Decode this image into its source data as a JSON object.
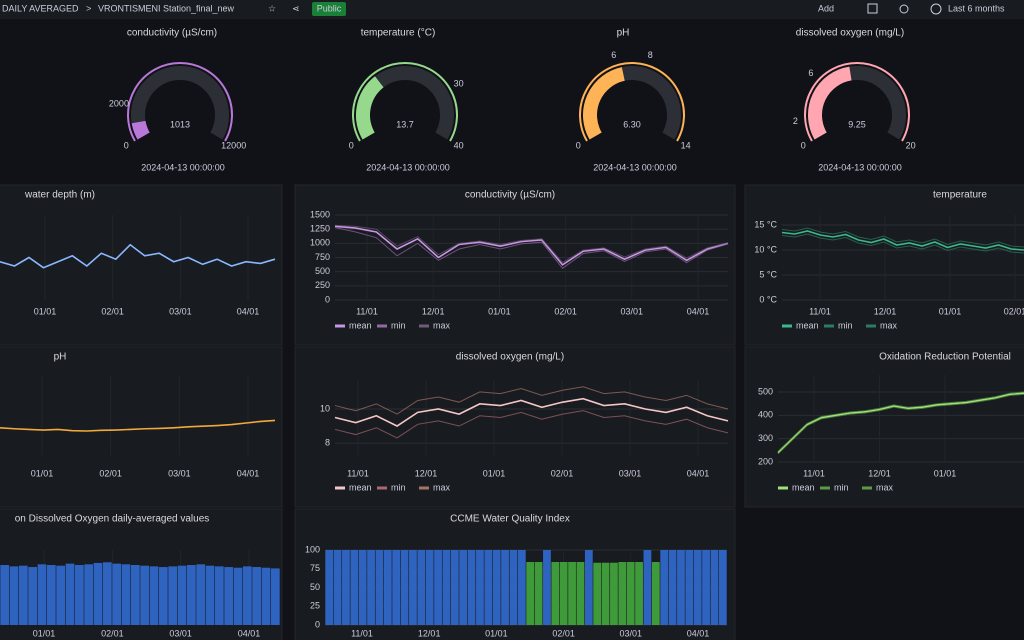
{
  "header": {
    "breadcrumb": "DAILY AVERAGED",
    "separator": ">",
    "dashboard": "VRONTISMENI Station_final_new",
    "badge": "Public",
    "add": "Add",
    "time_range": "Last 6 months"
  },
  "chart_data": [
    {
      "type": "gauge",
      "title": "conductivity (µS/cm)",
      "value": 1013,
      "ticks": [
        0,
        2000,
        12000
      ],
      "color": "#b877d9",
      "timestamp": "2024-04-13 00:00:00"
    },
    {
      "type": "gauge",
      "title": "temperature (°C)",
      "value": 13.7,
      "ticks": [
        0,
        30,
        40
      ],
      "color": "#96d98d",
      "timestamp": "2024-04-13 00:00:00"
    },
    {
      "type": "gauge",
      "title": "pH",
      "value": 6.3,
      "value_label": "6.30",
      "ticks": [
        0,
        6,
        8,
        14
      ],
      "color": "#ffb357",
      "timestamp": "2024-04-13 00:00:00"
    },
    {
      "type": "gauge",
      "title": "dissolved oxygen (mg/L)",
      "value": 9.25,
      "ticks": [
        0,
        2,
        6,
        20
      ],
      "color": "#ffa6b0",
      "timestamp": "2024-04-13 00:00:00"
    },
    {
      "type": "line",
      "title": "water depth (m)",
      "ylim": [
        0.6,
        1.6
      ],
      "xticks": [
        "01/01",
        "02/01",
        "03/01",
        "04/01"
      ],
      "series": [
        {
          "color": "#8ab8ff",
          "values": [
            1.05,
            1.0,
            1.1,
            0.98,
            1.05,
            1.12,
            1.0,
            1.15,
            1.08,
            1.25,
            1.12,
            1.15,
            1.05,
            1.1,
            1.02,
            1.08,
            1.0,
            1.05,
            1.03,
            1.08
          ]
        }
      ]
    },
    {
      "type": "line",
      "title": "conductivity (µS/cm)",
      "ylim": [
        0,
        1500
      ],
      "yticks": [
        0,
        250,
        500,
        750,
        1000,
        1250,
        1500
      ],
      "xticks": [
        "11/01",
        "12/01",
        "01/01",
        "02/01",
        "03/01",
        "04/01"
      ],
      "series": [
        {
          "name": "mean",
          "color": "#ca95e5",
          "values": [
            1300,
            1270,
            1200,
            900,
            1080,
            750,
            980,
            1020,
            950,
            1030,
            1060,
            620,
            860,
            900,
            720,
            880,
            930,
            700,
            900,
            1000
          ]
        },
        {
          "name": "min",
          "color": "#8f6aa3",
          "values": [
            1280,
            1200,
            1100,
            780,
            1000,
            700,
            900,
            980,
            900,
            990,
            1020,
            560,
            820,
            870,
            680,
            850,
            900,
            660,
            880,
            990
          ]
        },
        {
          "name": "max",
          "color": "#6e5a7a",
          "values": [
            1320,
            1300,
            1250,
            950,
            1120,
            800,
            1000,
            1040,
            980,
            1050,
            1080,
            660,
            880,
            920,
            760,
            900,
            950,
            740,
            920,
            1010
          ]
        }
      ]
    },
    {
      "type": "line",
      "title": "temperature",
      "ylim": [
        0,
        17
      ],
      "yticks": [
        {
          "value": 0,
          "label": "0 °C"
        },
        {
          "value": 5,
          "label": "5 °C"
        },
        {
          "value": 10,
          "label": "10 °C"
        },
        {
          "value": 15,
          "label": "15 °C"
        }
      ],
      "xticks": [
        "11/01",
        "12/01",
        "01/01",
        "02/01"
      ],
      "series": [
        {
          "name": "mean",
          "color": "#3cb88a",
          "values": [
            13.5,
            13.2,
            13.8,
            13.0,
            12.6,
            13.1,
            12.0,
            11.5,
            12.2,
            11.0,
            11.4,
            10.8,
            11.6,
            10.5,
            11.2,
            10.8,
            10.4,
            11.0,
            10.2,
            10.0
          ]
        },
        {
          "name": "min",
          "color": "#2b7d62",
          "values": [
            12.9,
            12.6,
            13.2,
            12.4,
            12.0,
            12.5,
            11.4,
            10.9,
            11.6,
            10.4,
            10.8,
            10.2,
            11.0,
            9.9,
            10.6,
            10.2,
            9.8,
            10.4,
            9.6,
            9.4
          ]
        },
        {
          "name": "max",
          "color": "#2b7d62",
          "values": [
            14.1,
            13.8,
            14.4,
            13.6,
            13.2,
            13.7,
            12.6,
            12.1,
            12.8,
            11.6,
            12.0,
            11.4,
            12.2,
            11.1,
            11.8,
            11.4,
            11.0,
            11.6,
            10.8,
            10.6
          ]
        }
      ]
    },
    {
      "type": "line",
      "title": "pH",
      "ylim": [
        5.5,
        8
      ],
      "xticks": [
        "01/01",
        "02/01",
        "03/01",
        "04/01"
      ],
      "series": [
        {
          "color": "#f2a93b",
          "values": [
            6.35,
            6.32,
            6.3,
            6.28,
            6.3,
            6.26,
            6.25,
            6.27,
            6.28,
            6.3,
            6.32,
            6.33,
            6.35,
            6.38,
            6.4,
            6.42,
            6.45,
            6.5,
            6.55,
            6.58
          ]
        }
      ]
    },
    {
      "type": "line",
      "title": "dissolved oxygen (mg/L)",
      "ylim": [
        7.3,
        11.7
      ],
      "yticks": [
        8,
        10
      ],
      "xticks": [
        "11/01",
        "12/01",
        "01/01",
        "02/01",
        "03/01",
        "04/01"
      ],
      "series": [
        {
          "name": "mean",
          "color": "#f5c6c6",
          "values": [
            9.5,
            9.2,
            9.6,
            9.0,
            9.8,
            10.0,
            9.7,
            10.3,
            10.2,
            10.5,
            10.1,
            10.4,
            10.6,
            10.2,
            10.3,
            10.0,
            9.8,
            10.1,
            9.6,
            9.3
          ]
        },
        {
          "name": "min",
          "color": "#a86a72",
          "values": [
            8.8,
            8.5,
            8.9,
            8.3,
            9.1,
            9.3,
            9.0,
            9.6,
            9.5,
            9.8,
            9.4,
            9.7,
            9.9,
            9.5,
            9.6,
            9.3,
            9.1,
            9.4,
            8.9,
            8.6
          ]
        },
        {
          "name": "max",
          "color": "#a8746a",
          "values": [
            10.2,
            9.9,
            10.3,
            9.7,
            10.5,
            10.7,
            10.4,
            11.0,
            10.9,
            11.2,
            10.8,
            11.1,
            11.3,
            10.9,
            11.0,
            10.7,
            10.5,
            10.8,
            10.3,
            10.0
          ]
        }
      ]
    },
    {
      "type": "line",
      "title": "Oxidation Reduction Potential",
      "ylim": [
        200,
        573
      ],
      "yticks": [
        200,
        300,
        400,
        500
      ],
      "xticks": [
        "11/01",
        "12/01",
        "01/01"
      ],
      "series": [
        {
          "name": "mean",
          "color": "#a0e27a",
          "values": [
            240,
            300,
            360,
            390,
            400,
            410,
            415,
            425,
            440,
            430,
            435,
            445,
            450,
            455,
            465,
            475,
            490,
            495
          ]
        },
        {
          "name": "min",
          "color": "#5e9a45",
          "values": [
            235,
            295,
            355,
            385,
            395,
            405,
            410,
            420,
            435,
            425,
            430,
            440,
            445,
            450,
            460,
            470,
            485,
            490
          ]
        },
        {
          "name": "max",
          "color": "#5e9a45",
          "values": [
            245,
            305,
            365,
            395,
            405,
            415,
            420,
            430,
            445,
            435,
            440,
            450,
            455,
            460,
            470,
            480,
            495,
            500
          ]
        }
      ]
    },
    {
      "type": "bar",
      "title": "on Dissolved Oxygen daily-averaged values",
      "ylim": [
        0,
        110
      ],
      "xticks": [
        "01/01",
        "02/01",
        "03/01",
        "04/01"
      ],
      "series": [
        {
          "color": "#2f63c0",
          "values": [
            88,
            86,
            87,
            85,
            89,
            88,
            87,
            90,
            88,
            89,
            91,
            92,
            90,
            89,
            88,
            87,
            86,
            85,
            86,
            87,
            88,
            89,
            87,
            86,
            85,
            84,
            86,
            85,
            84,
            83
          ]
        }
      ]
    },
    {
      "type": "bar",
      "title": "CCME Water Quality Index",
      "ylim": [
        0,
        100
      ],
      "yticks": [
        0,
        25,
        50,
        75,
        100
      ],
      "xticks": [
        "11/01",
        "12/01",
        "01/01",
        "02/01",
        "03/01",
        "04/01"
      ],
      "series": [
        {
          "color": "#2f63c0",
          "values": [
            100,
            100,
            100,
            100,
            100,
            100,
            100,
            100,
            100,
            100,
            100,
            100,
            100,
            100,
            100,
            100,
            100,
            100,
            100,
            100,
            100,
            100,
            100,
            100,
            null,
            null,
            100,
            null,
            null,
            null,
            null,
            100,
            null,
            null,
            null,
            null,
            null,
            null,
            100,
            null,
            100,
            100,
            100,
            100,
            100,
            100,
            100,
            100
          ]
        },
        {
          "color": "#3f9a3a",
          "values": [
            null,
            null,
            null,
            null,
            null,
            null,
            null,
            null,
            null,
            null,
            null,
            null,
            null,
            null,
            null,
            null,
            null,
            null,
            null,
            null,
            null,
            null,
            null,
            null,
            84,
            84,
            null,
            84,
            84,
            84,
            84,
            null,
            83,
            83,
            83,
            84,
            84,
            84,
            null,
            84,
            null,
            null,
            null,
            null,
            null,
            null,
            null,
            null
          ]
        }
      ]
    }
  ]
}
